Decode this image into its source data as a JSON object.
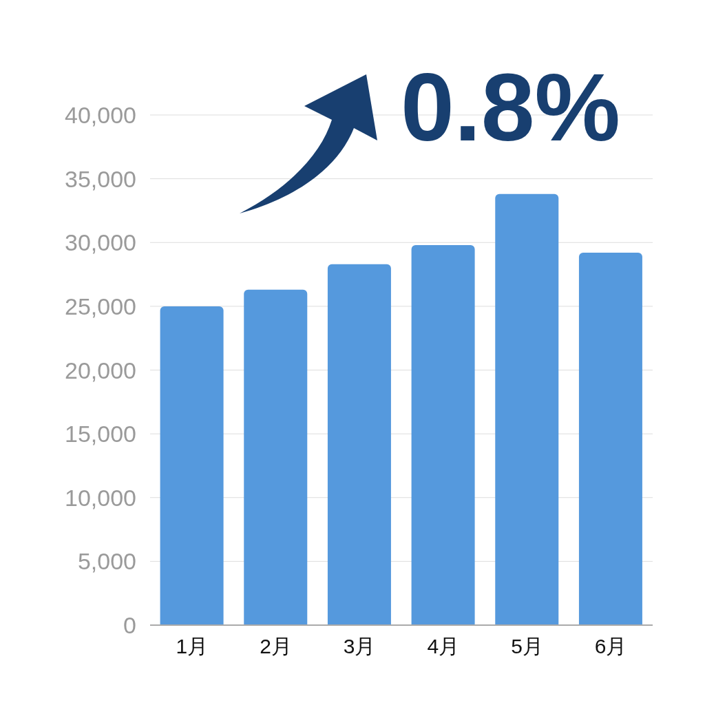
{
  "chart_data": {
    "type": "bar",
    "categories": [
      "1月",
      "2月",
      "3月",
      "4月",
      "5月",
      "6月"
    ],
    "values": [
      25000,
      26300,
      28300,
      29800,
      33800,
      29200
    ],
    "color": "#5599dd",
    "ylim": [
      0,
      40000
    ],
    "yticks": [
      {
        "value": 0,
        "label": "0"
      },
      {
        "value": 5000,
        "label": "5,000"
      },
      {
        "value": 10000,
        "label": "10,000"
      },
      {
        "value": 15000,
        "label": "15,000"
      },
      {
        "value": 20000,
        "label": "20,000"
      },
      {
        "value": 25000,
        "label": "25,000"
      },
      {
        "value": 30000,
        "label": "30,000"
      },
      {
        "value": 35000,
        "label": "35,000"
      },
      {
        "value": 40000,
        "label": "40,000"
      }
    ],
    "grid": "y",
    "annotations": [
      "0.8%"
    ]
  }
}
